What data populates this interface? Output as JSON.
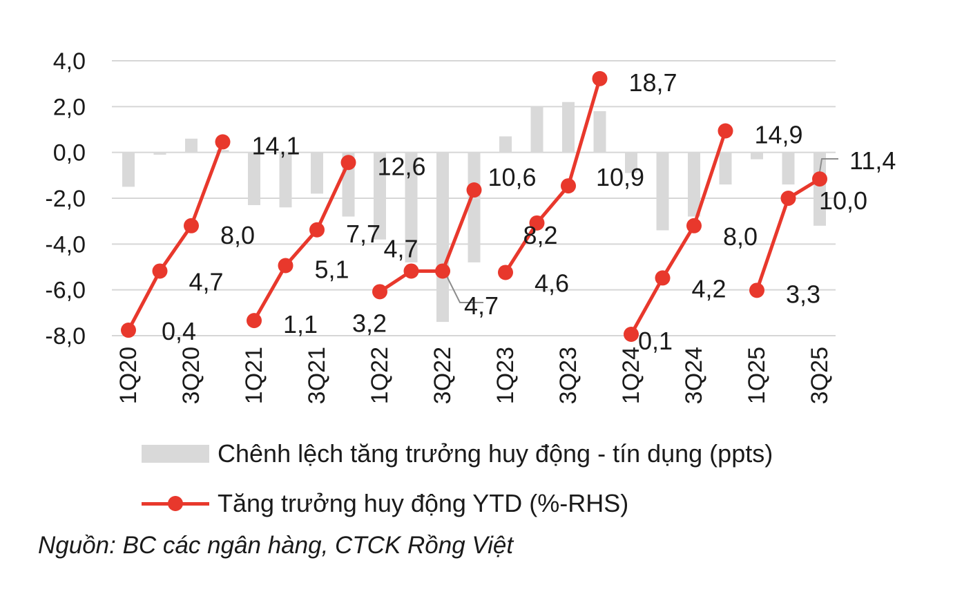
{
  "chart_data": {
    "type": "bar+line",
    "categories": [
      "1Q20",
      "2Q20",
      "3Q20",
      "4Q20",
      "1Q21",
      "2Q21",
      "3Q21",
      "4Q21",
      "1Q22",
      "2Q22",
      "3Q22",
      "4Q22",
      "1Q23",
      "2Q23",
      "3Q23",
      "4Q23",
      "1Q24",
      "2Q24",
      "3Q24",
      "4Q24",
      "1Q25",
      "2Q25",
      "3Q25"
    ],
    "tick_labels": [
      "1Q20",
      "",
      "3Q20",
      "",
      "1Q21",
      "",
      "3Q21",
      "",
      "1Q22",
      "",
      "3Q22",
      "",
      "1Q23",
      "",
      "3Q23",
      "",
      "1Q24",
      "",
      "3Q24",
      "",
      "1Q25",
      "",
      "3Q25"
    ],
    "y_left": {
      "ylim": [
        -8,
        4
      ],
      "ticks": [
        "-8,0",
        "-6,0",
        "-4,0",
        "-2,0",
        "0,0",
        "2,0",
        "4,0"
      ]
    },
    "y_right": {
      "ylim": [
        0,
        20
      ]
    },
    "series": [
      {
        "name": "Chênh lệch tăng trưởng huy động - tín dụng (ppts)",
        "type": "bar",
        "axis": "left",
        "color": "#d9d9d9",
        "values": [
          -1.5,
          -0.1,
          0.6,
          0.1,
          -2.3,
          -2.4,
          -1.8,
          -2.8,
          -3.8,
          -4.8,
          -7.4,
          -4.8,
          0.7,
          2.0,
          2.2,
          1.8,
          -0.9,
          -3.4,
          -2.8,
          -1.4,
          -0.3,
          -1.4,
          -3.2
        ]
      },
      {
        "name": "Tăng trưởng huy động YTD (%-RHS)",
        "type": "line",
        "axis": "right",
        "color": "#e8382c",
        "segments": [
          {
            "start": 0,
            "values": [
              0.4,
              4.7,
              8.0,
              14.1
            ]
          },
          {
            "start": 4,
            "values": [
              1.1,
              5.1,
              7.7,
              12.6
            ]
          },
          {
            "start": 8,
            "values": [
              3.2,
              4.7,
              4.7,
              10.6
            ]
          },
          {
            "start": 12,
            "values": [
              4.6,
              8.2,
              10.9,
              18.7
            ]
          },
          {
            "start": 16,
            "values": [
              0.1,
              4.2,
              8.0,
              14.9
            ]
          },
          {
            "start": 20,
            "values": [
              3.3,
              10.0,
              11.4
            ]
          }
        ],
        "data_labels": [
          "0,4",
          "4,7",
          "8,0",
          "14,1",
          "1,1",
          "5,1",
          "7,7",
          "12,6",
          "3,2",
          "4,7",
          "4,7",
          "10,6",
          "4,6",
          "8,2",
          "10,9",
          "18,7",
          "0,1",
          "4,2",
          "8,0",
          "14,9",
          "3,3",
          "10,0",
          "11,4"
        ]
      }
    ],
    "legend_position": "bottom",
    "grid": true
  },
  "legend": {
    "bar_label": "Chênh lệch tăng trưởng huy động - tín dụng (ppts)",
    "line_label": "Tăng trưởng huy động YTD (%-RHS)"
  },
  "source": "Nguồn: BC các ngân hàng, CTCK Rồng Việt"
}
